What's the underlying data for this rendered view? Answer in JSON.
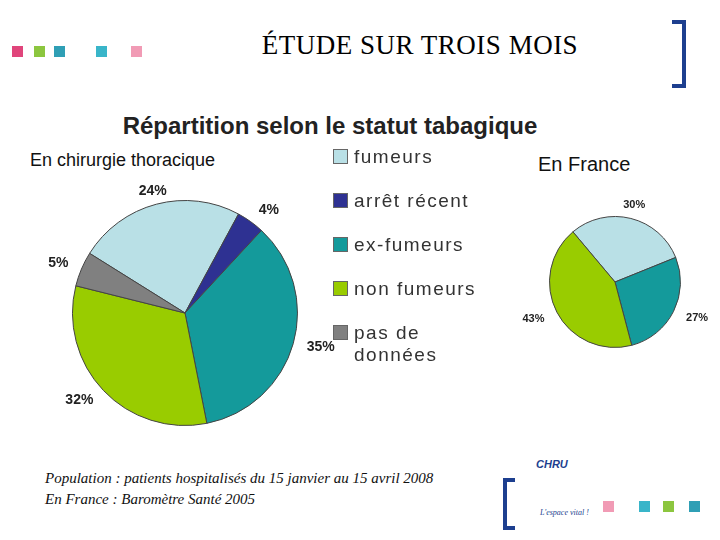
{
  "header": {
    "title": "ÉTUDE SUR TROIS MOIS",
    "subtitle": "Répartition selon le statut tabagique"
  },
  "chart_data": [
    {
      "type": "pie",
      "title": "En chirurgie thoracique",
      "categories": [
        "fumeurs",
        "arrêt récent",
        "ex-fumeurs",
        "non fumeurs",
        "pas de données"
      ],
      "values": [
        24,
        4,
        35,
        32,
        5
      ],
      "value_labels": [
        "24%",
        "4%",
        "35%",
        "32%",
        "5%"
      ],
      "colors": [
        "#b9e0e6",
        "#2e3192",
        "#149a9b",
        "#99cc00",
        "#808080"
      ],
      "data_labels": true,
      "legend": "right"
    },
    {
      "type": "pie",
      "title": "En France",
      "categories": [
        "fumeurs",
        "ex-fumeurs",
        "non fumeurs"
      ],
      "values": [
        30,
        27,
        43
      ],
      "value_labels": [
        "30%",
        "27%",
        "43%"
      ],
      "colors": [
        "#b9e0e6",
        "#149a9b",
        "#99cc00"
      ],
      "data_labels": true
    }
  ],
  "footer": {
    "notes": [
      "Population : patients hospitalisés du 15 janvier au 15 avril 2008",
      "En France : Baromètre Santé 2005"
    ],
    "logo": "CHRU",
    "slogan": "L'espace vital !"
  }
}
